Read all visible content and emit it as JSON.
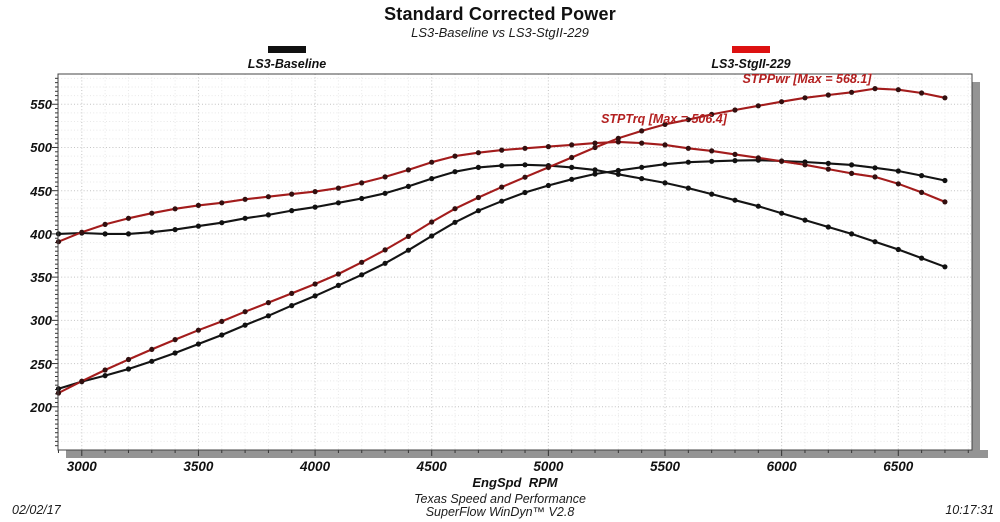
{
  "title": "Standard Corrected Power",
  "subtitle": "LS3-Baseline vs LS3-StgII-229",
  "legend": [
    {
      "label": "LS3-Baseline",
      "color": "#111111"
    },
    {
      "label": "LS3-StgII-229",
      "color": "#dd1111"
    }
  ],
  "annotations": {
    "power_max_label": "STPPwr [Max = 568.1]",
    "torque_max_label": "STPTrq [Max = 506.4]"
  },
  "x_axis_title": "EngSpd  RPM",
  "footer_line1": "Texas Speed and Performance",
  "footer_line2": "SuperFlow WinDyn™ V2.8",
  "date": "02/02/17",
  "time": "10:17:31",
  "colors": {
    "baseline_line": "#141414",
    "baseline_marker": "#111111",
    "stg2_line": "#a31c1c",
    "stg2_marker": "#330f0f",
    "annotation_text": "#b32020",
    "grid_major": "#c4c4c4",
    "grid_minor": "#e8e8e8",
    "frame": "#444444",
    "shadow": "#949494",
    "tick": "#333333"
  },
  "chart_data": {
    "type": "line",
    "title": "Standard Corrected Power",
    "xlabel": "EngSpd RPM",
    "ylabel": "",
    "x_range": [
      2898,
      6816
    ],
    "y_range": [
      150,
      585
    ],
    "x_major_ticks": [
      3000,
      3500,
      4000,
      4500,
      5000,
      5500,
      6000,
      6500
    ],
    "y_major_ticks": [
      200,
      250,
      300,
      350,
      400,
      450,
      500,
      550
    ],
    "grid": "dotted minor every 100 RPM / 10 units, major every 500 RPM / 50 units",
    "legend_position": "top",
    "x": [
      2900,
      3000,
      3100,
      3200,
      3300,
      3400,
      3500,
      3600,
      3700,
      3800,
      3900,
      4000,
      4100,
      4200,
      4300,
      4400,
      4500,
      4600,
      4700,
      4800,
      4900,
      5000,
      5100,
      5200,
      5300,
      5400,
      5500,
      5600,
      5700,
      5800,
      5900,
      6000,
      6100,
      6200,
      6300,
      6400,
      6500,
      6600,
      6700
    ],
    "series": [
      {
        "name": "LS3-Baseline STPTrq",
        "color_key": "baseline",
        "values": [
          400,
          401,
          400,
          400,
          402,
          405,
          409,
          413,
          418,
          422,
          427,
          431,
          436,
          441,
          447,
          455,
          464,
          472,
          477,
          479,
          480,
          479,
          477,
          474,
          469,
          464,
          459,
          453,
          446,
          439,
          432,
          424,
          416,
          408,
          400,
          391,
          382,
          372,
          362
        ]
      },
      {
        "name": "LS3-Baseline STPPwr",
        "color_key": "baseline",
        "values": [
          220.9,
          229.1,
          236.1,
          243.7,
          252.6,
          262.2,
          272.6,
          283.1,
          294.5,
          305.3,
          317.1,
          328.3,
          340.4,
          352.7,
          366.0,
          381.2,
          397.6,
          413.4,
          426.9,
          437.8,
          447.9,
          456.0,
          463.2,
          469.3,
          473.3,
          477.1,
          480.7,
          483.0,
          484.0,
          484.8,
          485.3,
          484.4,
          483.2,
          481.6,
          479.8,
          476.5,
          472.8,
          467.5,
          461.8
        ]
      },
      {
        "name": "LS3-StgII-229 STPTrq",
        "max": 506.4,
        "color_key": "stg2",
        "values": [
          391,
          402,
          411,
          418,
          424,
          429,
          433,
          436,
          440,
          443,
          446,
          449,
          453,
          459,
          466,
          474,
          483,
          490,
          494,
          497,
          499,
          501,
          503,
          505,
          506.4,
          505,
          503,
          499,
          496,
          492,
          488,
          484,
          480,
          475,
          470,
          466,
          458,
          448,
          437
        ]
      },
      {
        "name": "LS3-StgII-229 STPPwr",
        "max": 568.1,
        "color_key": "stg2",
        "values": [
          215.9,
          229.6,
          242.6,
          254.7,
          266.4,
          277.7,
          288.6,
          298.8,
          310.0,
          320.5,
          331.2,
          342.0,
          353.6,
          367.1,
          381.5,
          397.1,
          413.8,
          429.2,
          442.1,
          454.2,
          465.6,
          476.9,
          488.4,
          500.0,
          510.6,
          519.2,
          526.7,
          532.1,
          538.3,
          543.3,
          548.2,
          552.9,
          557.5,
          560.7,
          563.8,
          568.1,
          566.8,
          563.0,
          557.5
        ]
      }
    ]
  }
}
